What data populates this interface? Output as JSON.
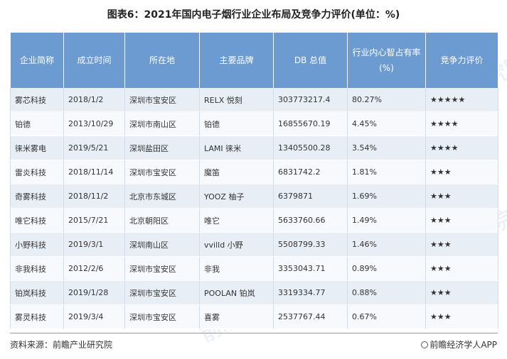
{
  "title": "图表6：2021年国内电子烟行业企业布局及竞争力评价(单位：%)",
  "headers": [
    "企业简称",
    "成立时间",
    "所在地",
    "主要品牌",
    "DB 总值",
    "行业内心智占有率(%)",
    "竞争力评价"
  ],
  "rows": [
    {
      "company": "雾芯科技",
      "founded": "2018/1/2",
      "location": "深圳市宝安区",
      "brand": "RELX 悦刻",
      "db_value": "303773217.4",
      "share": "80.27%",
      "rating": "★★★★★"
    },
    {
      "company": "铂德",
      "founded": "2013/10/29",
      "location": "深圳市南山区",
      "brand": "铂德",
      "db_value": "16855670.19",
      "share": "4.45%",
      "rating": "★★★★"
    },
    {
      "company": "徕米雾电",
      "founded": "2019/5/21",
      "location": "深圳盐田区",
      "brand": "LAMI 徕米",
      "db_value": "13405500.28",
      "share": "3.54%",
      "rating": "★★★★"
    },
    {
      "company": "雷炎科技",
      "founded": "2018/11/14",
      "location": "深圳市宝安区",
      "brand": "魔笛",
      "db_value": "6831742.2",
      "share": "1.81%",
      "rating": "★★★"
    },
    {
      "company": "奇雾科技",
      "founded": "2018/11/2",
      "location": "北京市东城区",
      "brand": "YOOZ 柚子",
      "db_value": "6379871",
      "share": "1.69%",
      "rating": "★★★"
    },
    {
      "company": "唯它科技",
      "founded": "2015/7/21",
      "location": "北京朝阳区",
      "brand": "唯它",
      "db_value": "5633760.66",
      "share": "1.49%",
      "rating": "★★★"
    },
    {
      "company": "小野科技",
      "founded": "2019/3/1",
      "location": "深圳南山区",
      "brand": "vvilld 小野",
      "db_value": "5508799.33",
      "share": "1.46%",
      "rating": "★★★"
    },
    {
      "company": "非我科技",
      "founded": "2012/2/6",
      "location": "深圳市宝安区",
      "brand": "非我",
      "db_value": "3353043.71",
      "share": "0.89%",
      "rating": "★★★"
    },
    {
      "company": "铂岚科技",
      "founded": "2019/1/28",
      "location": "深圳市宝安区",
      "brand": "POOLAN 铂岚",
      "db_value": "3319334.77",
      "share": "0.88%",
      "rating": "★★★"
    },
    {
      "company": "雾灵科技",
      "founded": "2019/3/4",
      "location": "深圳市宝安区",
      "brand": "喜雾",
      "db_value": "2537767.44",
      "share": "0.67%",
      "rating": "★★★"
    }
  ],
  "watermark": "前瞻产业研究院",
  "source": "资料来源：前瞻产业研究院",
  "brand": "前瞻经济学人APP"
}
